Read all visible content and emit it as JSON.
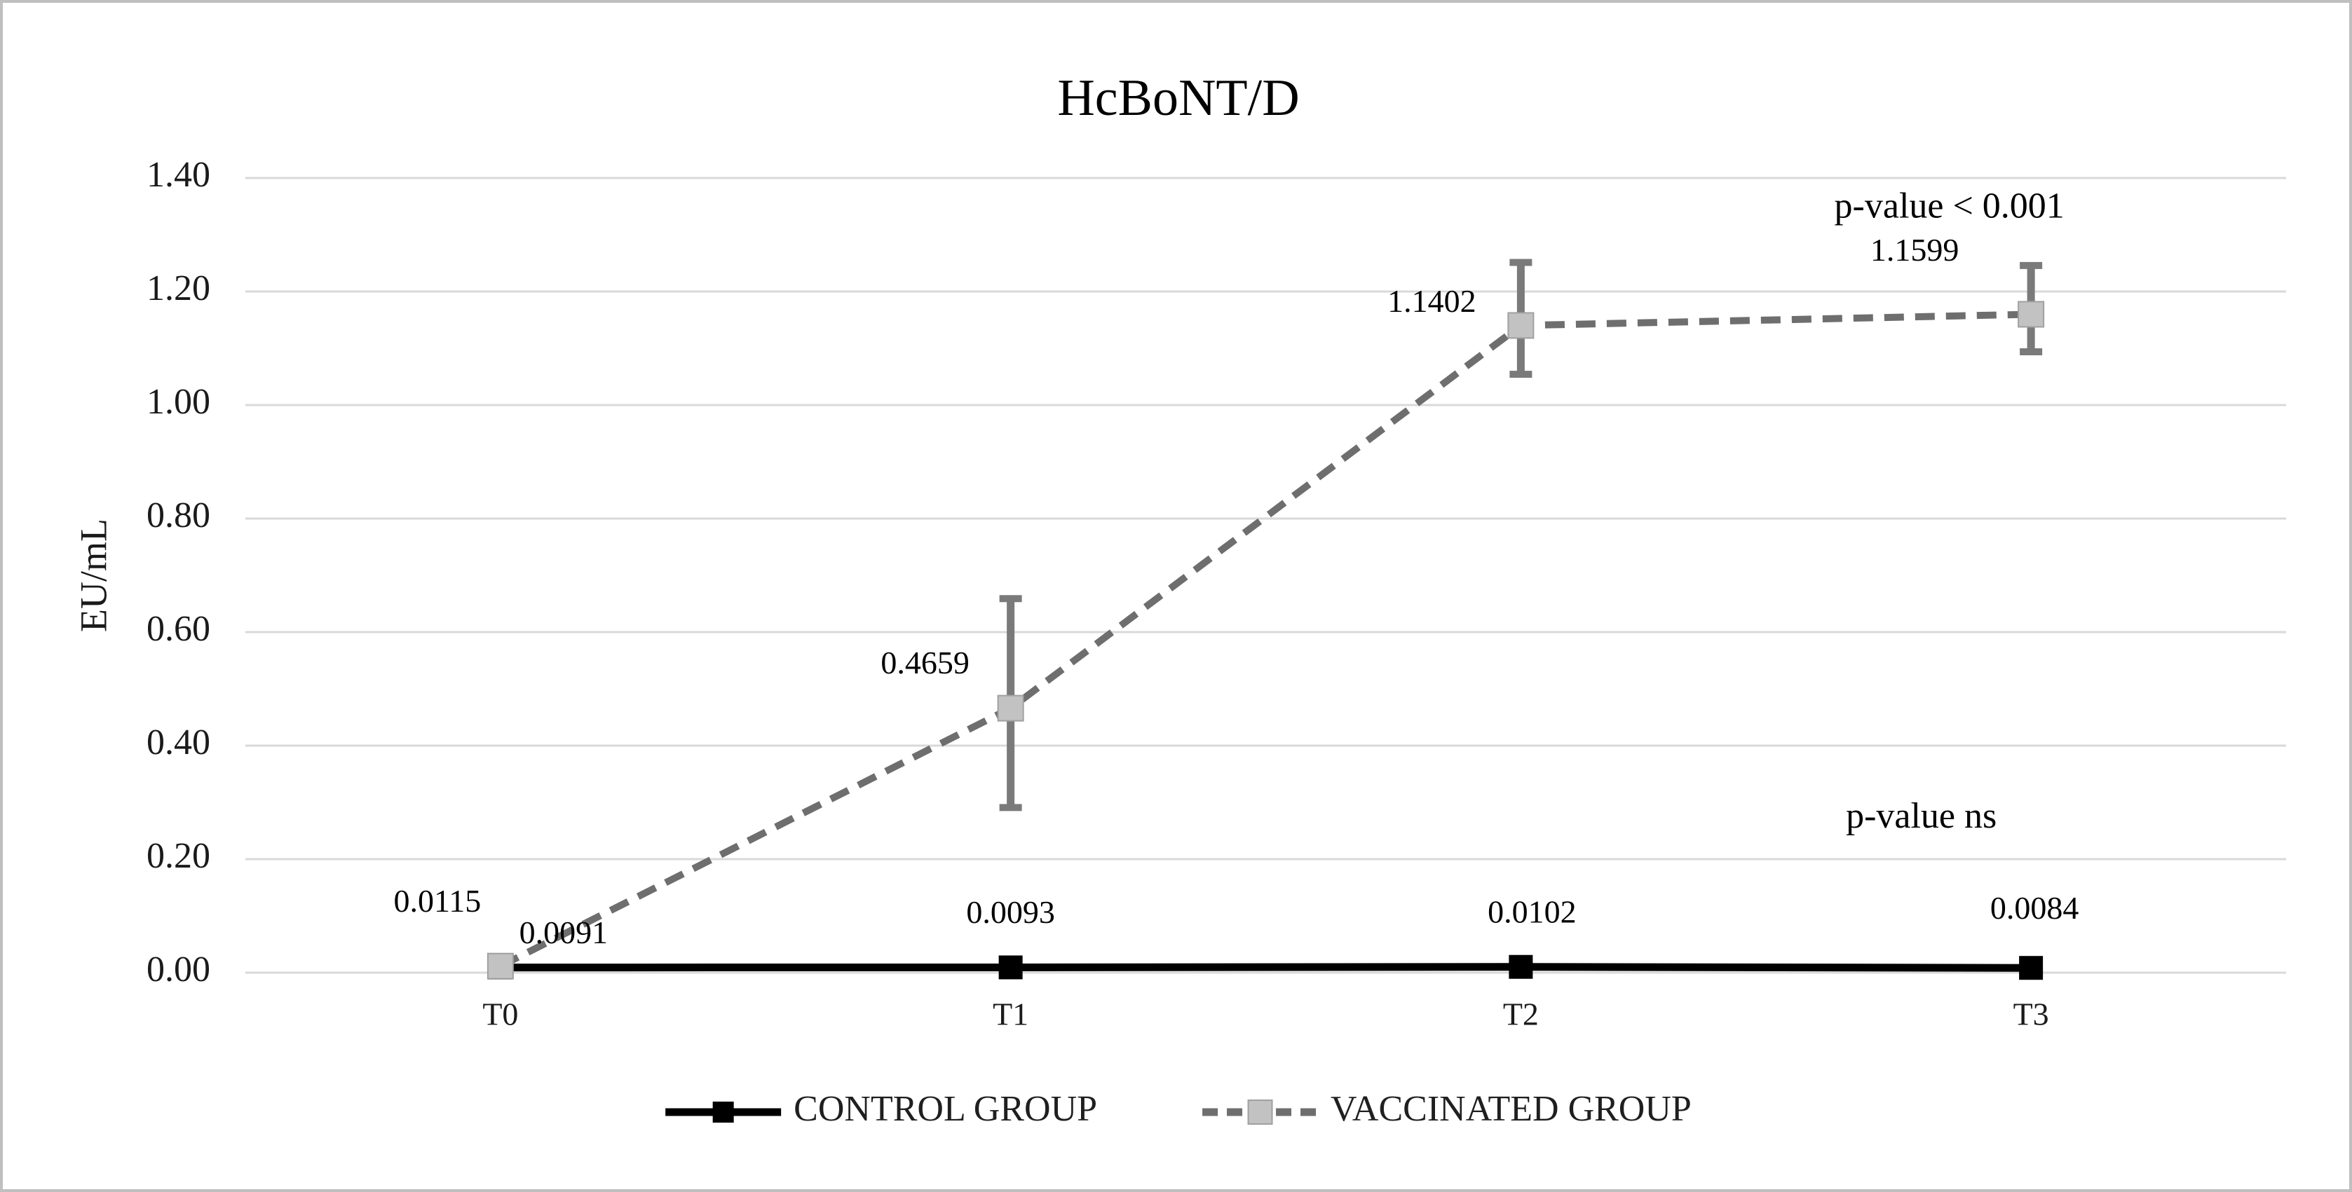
{
  "figure": {
    "background": "#ffffff",
    "border_color": "#bfbfbf",
    "text_color": "#1a1a1a"
  },
  "chart_data": {
    "type": "line",
    "title": "HcBoNT/D",
    "ylabel": "EU/mL",
    "xlabel": "",
    "categories": [
      "T0",
      "T1",
      "T2",
      "T3"
    ],
    "ylim": [
      0,
      1.4
    ],
    "ytick_step": 0.2,
    "ytick_labels": [
      "0.00",
      "0.20",
      "0.40",
      "0.60",
      "0.80",
      "1.00",
      "1.20",
      "1.40"
    ],
    "grid": true,
    "gridline_color": "#d9d9d9",
    "legend_position": "bottom",
    "series": [
      {
        "name": "CONTROL GROUP",
        "line_style": "solid",
        "line_color": "#000000",
        "marker": "square",
        "marker_fill": "#000000",
        "values": [
          0.0091,
          0.0093,
          0.0102,
          0.0084
        ],
        "data_labels": [
          "0.0091",
          "0.0093",
          "0.0102",
          "0.0084"
        ]
      },
      {
        "name": "VACCINATED GROUP",
        "line_style": "dashed",
        "line_color": "#6e6e6e",
        "marker": "square",
        "marker_fill": "#c2c2c2",
        "marker_stroke": "#a0a0a0",
        "values": [
          0.0115,
          0.4659,
          1.1402,
          1.1599
        ],
        "data_labels": [
          "0.0115",
          "0.4659",
          "1.1402",
          "1.1599"
        ],
        "error_up": [
          0,
          0.193,
          0.111,
          0.086
        ],
        "error_down": [
          0,
          0.175,
          0.086,
          0.066
        ],
        "error_color": "#7a7a7a"
      }
    ],
    "annotations": [
      {
        "text": "p-value < 0.001",
        "x_cat": 3.34,
        "y_val": 1.345
      },
      {
        "text": "p-value ns",
        "x_cat": 3.285,
        "y_val": 0.27
      }
    ]
  }
}
